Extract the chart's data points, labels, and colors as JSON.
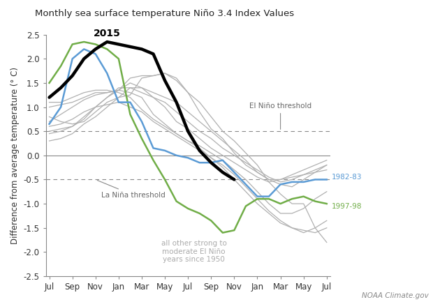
{
  "title": "Monthly sea surface temperature Niño 3.4 Index Values",
  "ylabel": "Difference from average temperature (° C)",
  "watermark": "NOAA Climate.gov",
  "ylim": [
    -2.5,
    2.5
  ],
  "yticks": [
    -2.5,
    -2.0,
    -1.5,
    -1.0,
    -0.5,
    0.0,
    0.5,
    1.0,
    1.5,
    2.0,
    2.5
  ],
  "xtick_labels": [
    "Jul",
    "Sep",
    "Nov",
    "Jan",
    "Mar",
    "May",
    "Jul",
    "Sep",
    "Nov",
    "Jan",
    "Mar",
    "May",
    "Jul"
  ],
  "el_nino_threshold": 0.5,
  "la_nina_threshold": -0.5,
  "color_2015": "#000000",
  "color_1982_83": "#5b9bd5",
  "color_1997_98": "#70ad47",
  "color_other": "#b0b0b0",
  "series_2015": [
    1.2,
    1.4,
    1.65,
    2.0,
    2.2,
    2.35,
    2.3,
    2.25,
    2.2,
    2.1,
    1.55,
    1.1,
    0.5,
    0.1,
    -0.15,
    -0.35,
    -0.5,
    null,
    null,
    null,
    null,
    null,
    null,
    null,
    null
  ],
  "series_1982_83": [
    0.65,
    1.0,
    2.0,
    2.2,
    2.1,
    1.7,
    1.1,
    1.1,
    0.7,
    0.15,
    0.1,
    0.0,
    -0.05,
    -0.15,
    -0.15,
    -0.1,
    -0.35,
    -0.6,
    -0.85,
    -0.85,
    -0.6,
    -0.55,
    -0.55,
    -0.5,
    -0.5
  ],
  "series_1997_98": [
    1.5,
    1.85,
    2.3,
    2.35,
    2.3,
    2.2,
    2.0,
    0.85,
    0.35,
    -0.1,
    -0.5,
    -0.95,
    -1.1,
    -1.2,
    -1.35,
    -1.6,
    -1.55,
    -1.05,
    -0.9,
    -0.9,
    -1.0,
    -0.9,
    -0.85,
    -0.95,
    -1.0
  ],
  "other_series": [
    [
      0.8,
      0.7,
      0.65,
      0.7,
      0.9,
      1.1,
      1.2,
      1.25,
      1.6,
      1.65,
      1.7,
      1.6,
      1.3,
      0.9,
      0.55,
      0.35,
      0.05,
      -0.2,
      -0.35,
      -0.5,
      -0.5,
      -0.45,
      -0.4,
      -0.35,
      -0.3
    ],
    [
      0.5,
      0.55,
      0.6,
      0.8,
      1.0,
      1.2,
      1.4,
      1.4,
      1.3,
      1.2,
      1.1,
      0.9,
      0.7,
      0.5,
      0.35,
      0.15,
      0.0,
      -0.15,
      -0.3,
      -0.45,
      -0.55,
      -0.5,
      -0.4,
      -0.3,
      -0.2
    ],
    [
      1.1,
      1.1,
      1.2,
      1.3,
      1.35,
      1.35,
      1.3,
      1.2,
      0.95,
      0.75,
      0.6,
      0.45,
      0.3,
      0.15,
      -0.05,
      -0.25,
      -0.5,
      -0.75,
      -1.0,
      -1.2,
      -1.4,
      -1.5,
      -1.6,
      -1.5,
      -1.35
    ],
    [
      0.7,
      0.85,
      1.0,
      1.15,
      1.25,
      1.3,
      1.35,
      1.3,
      1.2,
      0.85,
      0.65,
      0.45,
      0.3,
      0.2,
      0.05,
      -0.1,
      -0.3,
      -0.5,
      -0.75,
      -1.0,
      -1.2,
      -1.2,
      -1.1,
      -0.9,
      -0.75
    ],
    [
      0.45,
      0.5,
      0.6,
      0.75,
      1.0,
      1.2,
      1.35,
      1.5,
      1.4,
      1.2,
      1.0,
      0.7,
      0.55,
      0.35,
      0.15,
      0.0,
      -0.15,
      -0.3,
      -0.45,
      -0.55,
      -0.5,
      -0.4,
      -0.3,
      -0.2,
      -0.1
    ],
    [
      0.3,
      0.35,
      0.45,
      0.65,
      0.8,
      1.0,
      1.2,
      1.4,
      1.4,
      1.3,
      1.2,
      1.1,
      0.9,
      0.7,
      0.5,
      0.3,
      0.1,
      -0.1,
      -0.35,
      -0.5,
      -0.6,
      -0.65,
      -0.5,
      -0.35,
      -0.2
    ],
    [
      1.0,
      1.05,
      1.1,
      1.2,
      1.3,
      1.3,
      1.35,
      1.6,
      1.65,
      1.65,
      1.7,
      1.55,
      1.3,
      1.1,
      0.8,
      0.5,
      0.3,
      0.05,
      -0.2,
      -0.55,
      -0.8,
      -1.0,
      -1.0,
      -1.5,
      -1.8
    ],
    [
      0.6,
      0.65,
      0.75,
      0.9,
      1.0,
      1.05,
      1.1,
      1.0,
      0.9,
      0.7,
      0.55,
      0.4,
      0.25,
      0.1,
      -0.05,
      -0.2,
      -0.4,
      -0.65,
      -0.9,
      -1.15,
      -1.35,
      -1.5,
      -1.55,
      -1.6,
      -1.5
    ]
  ]
}
